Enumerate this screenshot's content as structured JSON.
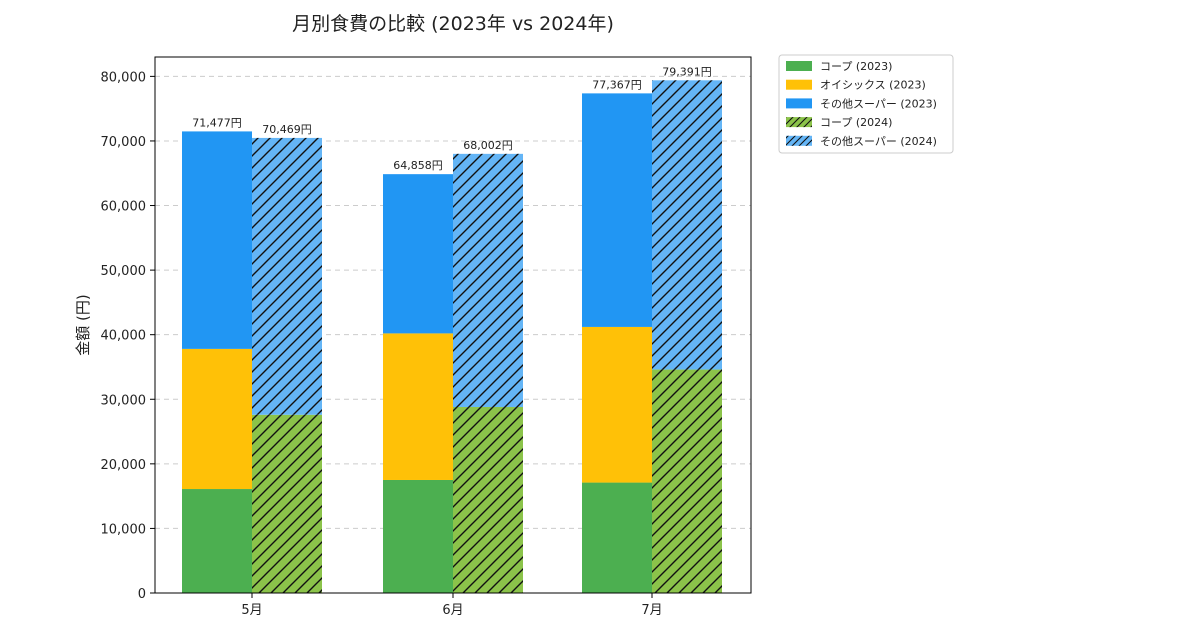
{
  "chart_data": {
    "type": "bar",
    "title": "月別食費の比較 (2023年 vs 2024年)",
    "xlabel": "",
    "ylabel": "金額 (円)",
    "ylim": [
      0,
      83000
    ],
    "yticks": [
      0,
      10000,
      20000,
      30000,
      40000,
      50000,
      60000,
      70000,
      80000
    ],
    "ytick_labels": [
      "0",
      "10,000",
      "20,000",
      "30,000",
      "40,000",
      "50,000",
      "60,000",
      "70,000",
      "80,000"
    ],
    "grid": "horizontal dashed",
    "legend_position": "outside top-right",
    "categories": [
      "5月",
      "6月",
      "7月"
    ],
    "groups": [
      {
        "year": "2023",
        "hatched": false,
        "series": [
          {
            "name": "コープ (2023)",
            "color": "#4caf50",
            "values": [
              16100,
              17500,
              17100
            ]
          },
          {
            "name": "オイシックス (2023)",
            "color": "#ffc107",
            "values": [
              21700,
              22700,
              24100
            ]
          },
          {
            "name": "その他スーパー (2023)",
            "color": "#2196f3",
            "values": [
              33677,
              24658,
              36167
            ]
          }
        ],
        "totals": [
          71477,
          64858,
          77367
        ],
        "total_labels": [
          "71,477円",
          "64,858円",
          "77,367円"
        ]
      },
      {
        "year": "2024",
        "hatched": true,
        "series": [
          {
            "name": "コープ (2024)",
            "color": "#8bc34a",
            "values": [
              27600,
              28800,
              34600
            ]
          },
          {
            "name": "その他スーパー (2024)",
            "color": "#64b5f6",
            "values": [
              42869,
              39202,
              44791
            ]
          }
        ],
        "totals": [
          70469,
          68002,
          79391
        ],
        "total_labels": [
          "70,469円",
          "68,002円",
          "79,391円"
        ]
      }
    ],
    "legend": [
      {
        "label": "コープ (2023)",
        "color": "#4caf50",
        "hatched": false
      },
      {
        "label": "オイシックス (2023)",
        "color": "#ffc107",
        "hatched": false
      },
      {
        "label": "その他スーパー (2023)",
        "color": "#2196f3",
        "hatched": false
      },
      {
        "label": "コープ (2024)",
        "color": "#8bc34a",
        "hatched": true
      },
      {
        "label": "その他スーパー (2024)",
        "color": "#64b5f6",
        "hatched": true
      }
    ]
  }
}
